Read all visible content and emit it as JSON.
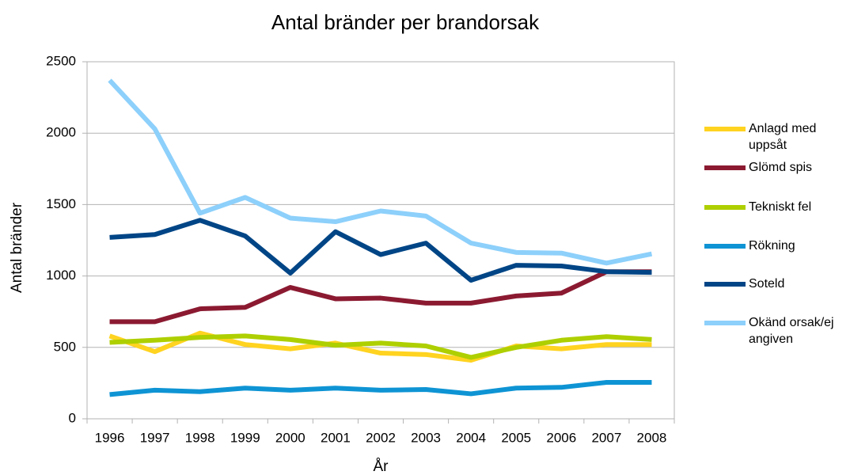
{
  "chart_data": {
    "type": "line",
    "title": "Antal bränder per brandorsak",
    "x_label": "År",
    "y_label": "Antal bränder",
    "categories": [
      "1996",
      "1997",
      "1998",
      "1999",
      "2000",
      "2001",
      "2002",
      "2003",
      "2004",
      "2005",
      "2006",
      "2007",
      "2008"
    ],
    "series": [
      {
        "name": "Anlagd med uppsåt",
        "color": "#ffd320",
        "values": [
          580,
          470,
          600,
          520,
          490,
          530,
          460,
          450,
          410,
          510,
          490,
          520,
          520
        ]
      },
      {
        "name": "Glömd spis",
        "color": "#8b1a31",
        "values": [
          680,
          680,
          770,
          780,
          920,
          840,
          845,
          810,
          810,
          860,
          880,
          1030,
          1030
        ]
      },
      {
        "name": "Tekniskt fel",
        "color": "#aecf00",
        "values": [
          535,
          550,
          570,
          580,
          555,
          515,
          530,
          510,
          430,
          500,
          550,
          575,
          555
        ]
      },
      {
        "name": "Rökning",
        "color": "#0e94d4",
        "values": [
          170,
          200,
          190,
          215,
          200,
          215,
          200,
          205,
          175,
          215,
          220,
          255,
          255
        ]
      },
      {
        "name": "Soteld",
        "color": "#004586",
        "values": [
          1270,
          1290,
          1390,
          1280,
          1020,
          1310,
          1150,
          1230,
          970,
          1075,
          1070,
          1030,
          1025
        ]
      },
      {
        "name": "Okänd orsak/ej angiven",
        "color": "#8dd0fb",
        "values": [
          2370,
          2030,
          1440,
          1550,
          1405,
          1380,
          1455,
          1420,
          1230,
          1165,
          1160,
          1090,
          1155
        ]
      }
    ],
    "ylim": [
      0,
      2500
    ],
    "yticks": [
      0,
      500,
      1000,
      1500,
      2000,
      2500
    ],
    "grid": true,
    "legend": "right"
  }
}
